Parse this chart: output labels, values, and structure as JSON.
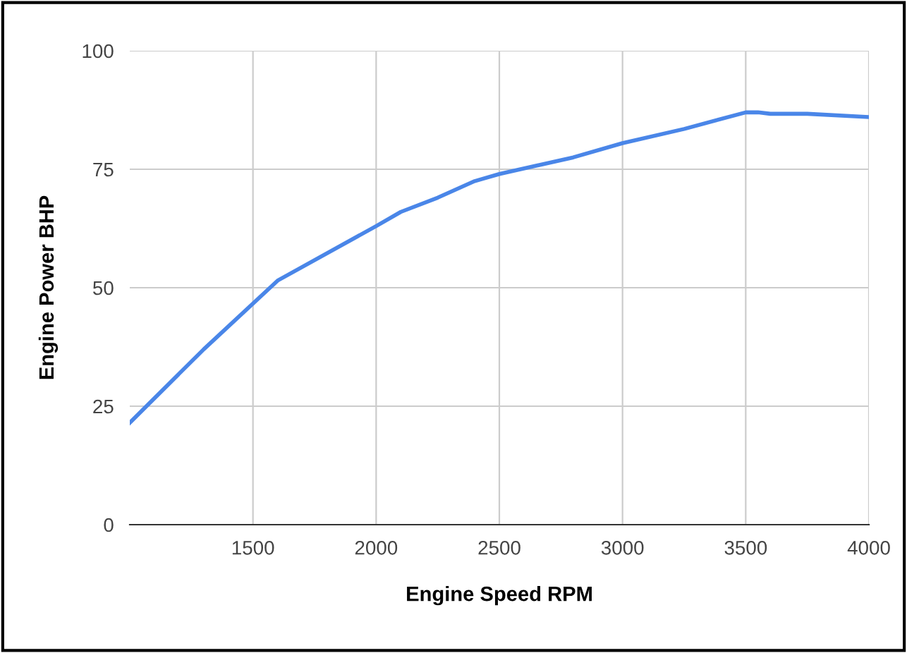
{
  "chart_data": {
    "type": "line",
    "xlabel": "Engine Speed RPM",
    "ylabel": "Engine Power BHP",
    "x": [
      1000,
      1300,
      1600,
      2000,
      2100,
      2250,
      2400,
      2500,
      2800,
      3000,
      3250,
      3500,
      3550,
      3600,
      3750,
      4000
    ],
    "series": [
      {
        "color": "#4a86e8",
        "values": [
          21.5,
          37,
          51.5,
          63,
          66,
          69,
          72.5,
          74,
          77.5,
          80.5,
          83.5,
          87,
          87,
          86.7,
          86.7,
          86
        ]
      }
    ],
    "xlim": [
      1000,
      4000
    ],
    "xticks": [
      1500,
      2000,
      2500,
      3000,
      3500,
      4000
    ],
    "ylim": [
      0,
      100
    ],
    "yticks": [
      0,
      25,
      50,
      75,
      100
    ],
    "grid": true,
    "marker": "none",
    "line_style": "solid"
  }
}
